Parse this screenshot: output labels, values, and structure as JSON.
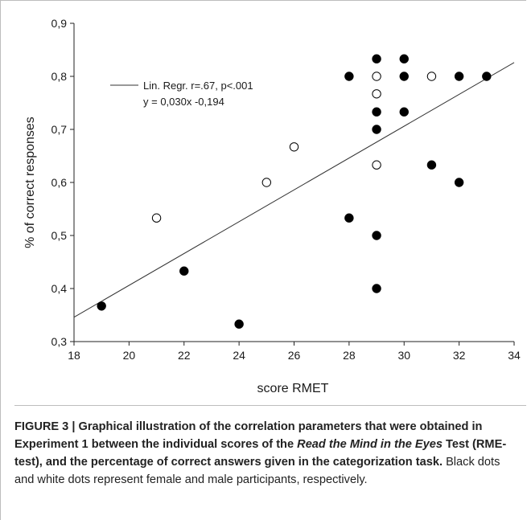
{
  "chart_data": {
    "type": "scatter",
    "xlabel": "score RMET",
    "ylabel": "% of correct responses",
    "xlim": [
      18,
      34
    ],
    "ylim": [
      0.3,
      0.9
    ],
    "x_ticks": [
      18,
      20,
      22,
      24,
      26,
      28,
      30,
      32,
      34
    ],
    "y_ticks": [
      0.3,
      0.4,
      0.5,
      0.6,
      0.7,
      0.8,
      0.9
    ],
    "x_tick_labels": [
      "18",
      "20",
      "22",
      "24",
      "26",
      "28",
      "30",
      "32",
      "34"
    ],
    "y_tick_labels": [
      "0,3",
      "0,4",
      "0,5",
      "0,6",
      "0,7",
      "0,8",
      "0,9"
    ],
    "grid": false,
    "legend_placement": "top-left",
    "legend_line1": "Lin. Regr. r=.67, p<.001",
    "legend_line2": "y = 0,030x -0,194",
    "regression": {
      "slope": 0.03,
      "intercept": -0.194,
      "x_range": [
        18,
        34
      ]
    },
    "series": [
      {
        "style": "filled",
        "color": "#000000",
        "points": [
          [
            19,
            0.367
          ],
          [
            22,
            0.433
          ],
          [
            24,
            0.333
          ],
          [
            28,
            0.8
          ],
          [
            28,
            0.533
          ],
          [
            29,
            0.833
          ],
          [
            29,
            0.733
          ],
          [
            29,
            0.7
          ],
          [
            29,
            0.5
          ],
          [
            29,
            0.4
          ],
          [
            30,
            0.833
          ],
          [
            30,
            0.8
          ],
          [
            30,
            0.733
          ],
          [
            31,
            0.633
          ],
          [
            32,
            0.8
          ],
          [
            32,
            0.6
          ],
          [
            33,
            0.8
          ]
        ]
      },
      {
        "style": "open",
        "color": "#000000",
        "points": [
          [
            21,
            0.533
          ],
          [
            25,
            0.6
          ],
          [
            26,
            0.667
          ],
          [
            29,
            0.8
          ],
          [
            29,
            0.767
          ],
          [
            29,
            0.633
          ],
          [
            31,
            0.8
          ]
        ]
      }
    ]
  },
  "caption": {
    "bold_part1": "FIGURE 3 | Graphical illustration of the correlation parameters that were obtained in Experiment 1 between the individual scores of the ",
    "bold_italic_part": "Read the Mind in the Eyes",
    "bold_part2": " Test (RME-test), and the percentage of correct answers given in the categorization task.",
    "normal_part": " Black dots and white dots represent female and male participants, respectively."
  }
}
